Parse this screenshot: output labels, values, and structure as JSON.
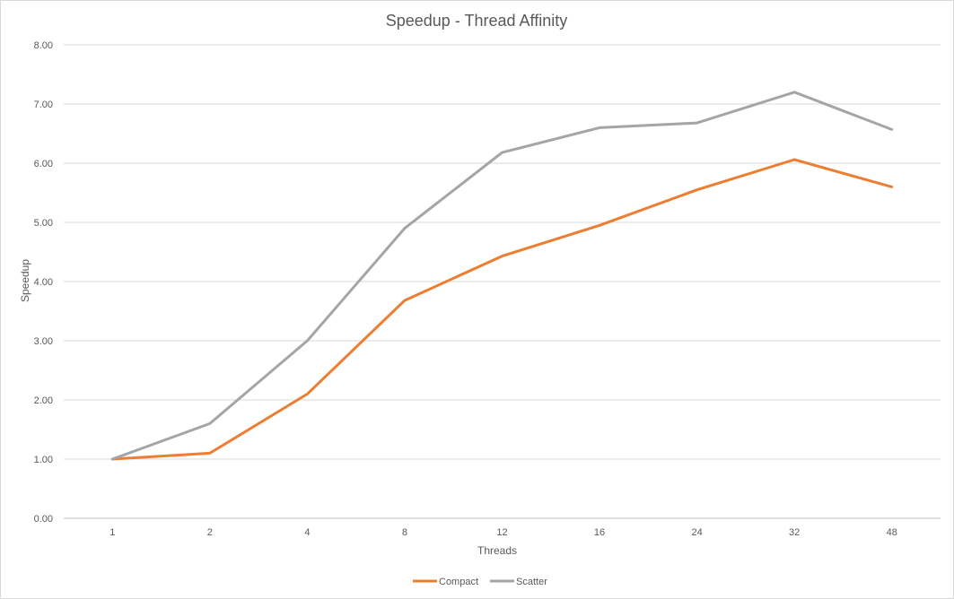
{
  "chart_data": {
    "type": "line",
    "title": "Speedup - Thread Affinity",
    "xlabel": "Threads",
    "ylabel": "Speedup",
    "categories": [
      "1",
      "2",
      "4",
      "8",
      "12",
      "16",
      "24",
      "32",
      "48"
    ],
    "y_ticks": [
      "0.00",
      "1.00",
      "2.00",
      "3.00",
      "4.00",
      "5.00",
      "6.00",
      "7.00",
      "8.00"
    ],
    "ylim": [
      0,
      8
    ],
    "grid": true,
    "legend_position": "bottom",
    "series": [
      {
        "name": "Compact",
        "color": "#ED7D31",
        "values": [
          1.0,
          1.1,
          2.1,
          3.68,
          4.43,
          4.95,
          5.55,
          6.06,
          5.6
        ]
      },
      {
        "name": "Scatter",
        "color": "#A5A5A5",
        "values": [
          1.0,
          1.6,
          3.0,
          4.9,
          6.18,
          6.6,
          6.68,
          7.2,
          6.57
        ]
      }
    ]
  }
}
